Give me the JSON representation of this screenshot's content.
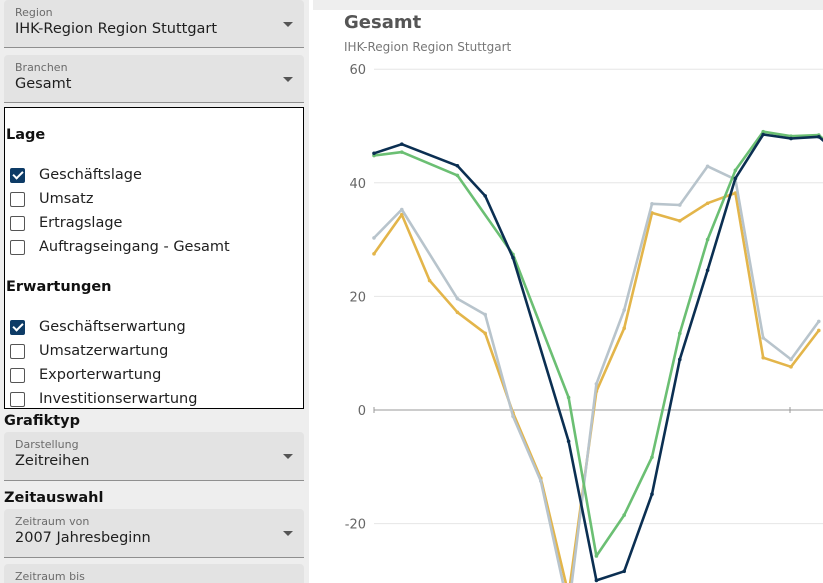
{
  "region": {
    "label": "Region",
    "value": "IHK-Region Region Stuttgart"
  },
  "branchen": {
    "label": "Branchen",
    "value": "Gesamt"
  },
  "lage": {
    "title": "Lage",
    "items": [
      {
        "label": "Geschäftslage",
        "checked": true
      },
      {
        "label": "Umsatz",
        "checked": false
      },
      {
        "label": "Ertragslage",
        "checked": false
      },
      {
        "label": "Auftragseingang - Gesamt",
        "checked": false
      }
    ]
  },
  "erwartungen": {
    "title": "Erwartungen",
    "items": [
      {
        "label": "Geschäftserwartung",
        "checked": true
      },
      {
        "label": "Umsatzerwartung",
        "checked": false
      },
      {
        "label": "Exporterwartung",
        "checked": false
      },
      {
        "label": "Investitionserwartung",
        "checked": false
      }
    ]
  },
  "grafiktyp": {
    "title": "Grafiktyp",
    "label": "Darstellung",
    "value": "Zeitreihen"
  },
  "zeitauswahl": {
    "title": "Zeitauswahl",
    "von": {
      "label": "Zeitraum von",
      "value": "2007 Jahresbeginn"
    },
    "bis": {
      "label": "Zeitraum bis"
    }
  },
  "chart_data": {
    "type": "line",
    "title": "Gesamt",
    "subtitle": "IHK-Region Region Stuttgart",
    "ylim": [
      -30,
      62
    ],
    "yticks": [
      60,
      40,
      20,
      0,
      -20
    ],
    "grid": true,
    "series": [
      {
        "color": "#0b2f52",
        "points": [
          [
            0,
            45.2
          ],
          [
            1,
            46.8
          ],
          [
            3,
            43
          ],
          [
            4,
            37.7
          ],
          [
            5,
            26.8
          ],
          [
            7,
            -5.5
          ],
          [
            8,
            -30
          ],
          [
            9,
            -28.4
          ],
          [
            10,
            -14.8
          ],
          [
            11,
            8.9
          ],
          [
            12,
            24.6
          ],
          [
            13,
            40.8
          ],
          [
            14,
            48.5
          ],
          [
            15,
            47.8
          ],
          [
            16,
            48.1
          ],
          [
            17,
            44
          ]
        ]
      },
      {
        "color": "#6bbf73",
        "points": [
          [
            0,
            44.8
          ],
          [
            1,
            45.4
          ],
          [
            3,
            41.3
          ],
          [
            5,
            27.4
          ],
          [
            7,
            2.2
          ],
          [
            8,
            -25.7
          ],
          [
            9,
            -18.5
          ],
          [
            10,
            -8.3
          ],
          [
            11,
            13.5
          ],
          [
            12,
            30
          ],
          [
            13,
            42.2
          ],
          [
            14,
            49
          ],
          [
            15,
            48.2
          ],
          [
            16,
            48.4
          ],
          [
            17,
            44.2
          ]
        ]
      },
      {
        "color": "#b8c4cc",
        "points": [
          [
            0,
            30.3
          ],
          [
            1,
            35.3
          ],
          [
            3,
            19.6
          ],
          [
            4,
            16.8
          ],
          [
            5,
            -1.1
          ],
          [
            6,
            -12.5
          ],
          [
            7,
            -35
          ],
          [
            8,
            4.6
          ],
          [
            9,
            17.6
          ],
          [
            10,
            36.3
          ],
          [
            11,
            36.1
          ],
          [
            12,
            42.9
          ],
          [
            13,
            40.6
          ],
          [
            14,
            12.7
          ],
          [
            15,
            8.9
          ],
          [
            16,
            15.6
          ]
        ]
      },
      {
        "color": "#e3b54a",
        "points": [
          [
            0,
            27.5
          ],
          [
            1,
            34.4
          ],
          [
            2,
            22.8
          ],
          [
            3,
            17.2
          ],
          [
            4,
            13.5
          ],
          [
            5,
            -0.5
          ],
          [
            6,
            -12
          ],
          [
            7,
            -32.5
          ],
          [
            8,
            3.3
          ],
          [
            9,
            14.4
          ],
          [
            10,
            34.7
          ],
          [
            11,
            33.3
          ],
          [
            12,
            36.4
          ],
          [
            13,
            38.2
          ],
          [
            14,
            9.2
          ],
          [
            15,
            7.6
          ],
          [
            16,
            14
          ]
        ]
      }
    ]
  }
}
